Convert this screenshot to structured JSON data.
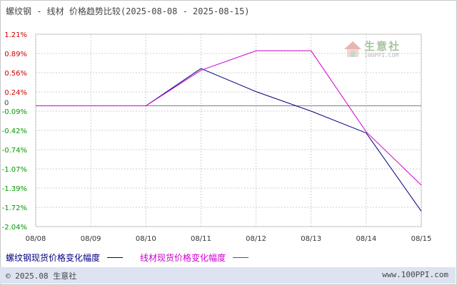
{
  "title": "螺纹钢 - 线材 价格趋势比较(2025-08-08 - 2025-08-15)",
  "watermark": {
    "name": "生意社",
    "url": "100PPI.COM"
  },
  "footer": {
    "left": "© 2025.08 生意社",
    "right": "www.100PPI.com"
  },
  "colors": {
    "series_rebar": "#000080",
    "series_wire": "#cc00cc",
    "grid": "#cfcfcf",
    "zero_line": "#808080",
    "tick_positive": "#cc0000",
    "tick_negative": "#009900",
    "tick_zero": "#444444"
  },
  "chart_data": {
    "type": "line",
    "title": "螺纹钢 - 线材 价格趋势比较(2025-08-08 - 2025-08-15)",
    "categories": [
      "08/08",
      "08/09",
      "08/10",
      "08/11",
      "08/12",
      "08/13",
      "08/14",
      "08/15"
    ],
    "yticks": [
      "1.21%",
      "0.89%",
      "0.56%",
      "0.24%",
      "-0.09%",
      "-0.42%",
      "-0.74%",
      "-1.07%",
      "-1.39%",
      "-1.72%",
      "-2.04%"
    ],
    "yzero_label": "0",
    "ylim": [
      -2.04,
      1.21
    ],
    "unit": "%",
    "grid": true,
    "legend_position": "bottom",
    "series": [
      {
        "name": "螺纹钢现货价格变化幅度",
        "values": [
          0,
          0,
          0,
          0.63,
          0.24,
          -0.09,
          -0.46,
          -1.78
        ]
      },
      {
        "name": "线材现货价格变化幅度",
        "values": [
          0,
          0,
          0,
          0.6,
          0.93,
          0.93,
          -0.44,
          -1.34
        ]
      }
    ]
  }
}
